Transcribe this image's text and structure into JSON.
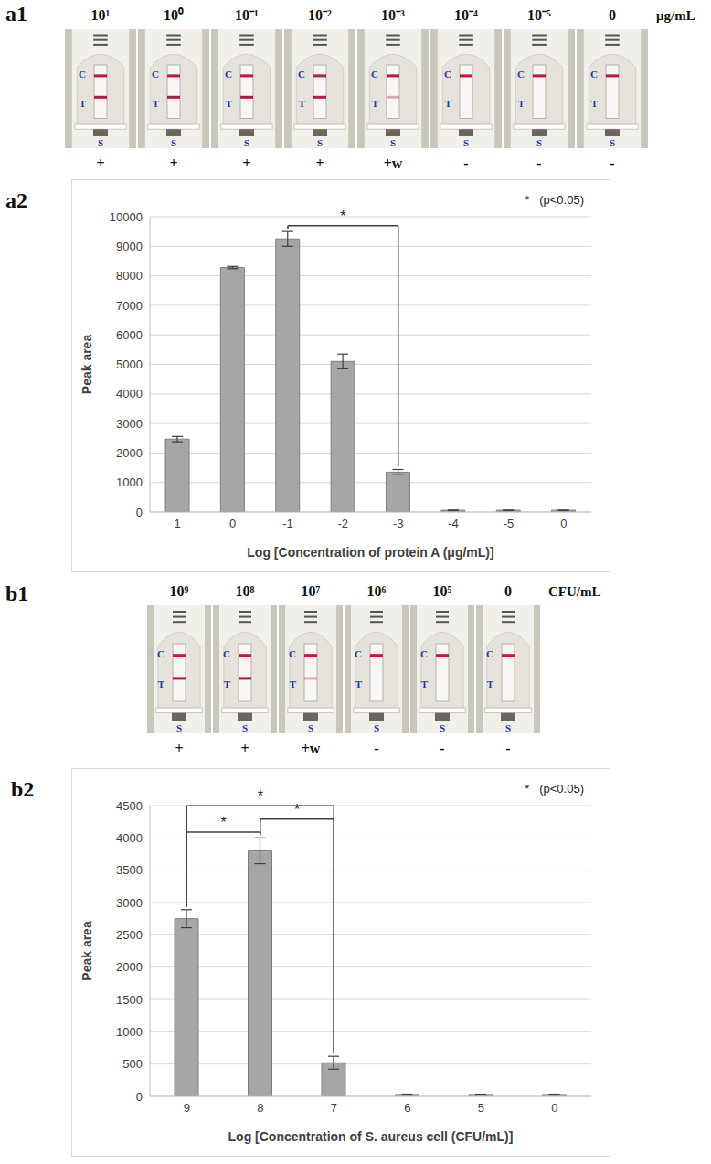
{
  "markings": {
    "control": "C",
    "test": "T",
    "sample": "S"
  },
  "strips": [
    {
      "panel": "a1",
      "unit": "μg/mL",
      "concentrations": [
        "10¹",
        "10⁰",
        "10⁻¹",
        "10⁻²",
        "10⁻³",
        "10⁻⁴",
        "10⁻⁵",
        "0"
      ],
      "results": [
        "+",
        "+",
        "+",
        "+",
        "+w",
        "-",
        "-",
        "-"
      ]
    },
    {
      "panel": "b1",
      "unit": "CFU/mL",
      "concentrations": [
        "10⁹",
        "10⁸",
        "10⁷",
        "10⁶",
        "10⁵",
        "0"
      ],
      "results": [
        "+",
        "+",
        "+w",
        "-",
        "-",
        "-"
      ]
    }
  ],
  "chart_data": [
    {
      "panel": "a2",
      "type": "bar",
      "categories": [
        "1",
        "0",
        "-1",
        "-2",
        "-3",
        "-4",
        "-5",
        "0"
      ],
      "values": [
        2470,
        8280,
        9250,
        5100,
        1350,
        60,
        60,
        60
      ],
      "errors": [
        90,
        40,
        250,
        250,
        90,
        5,
        5,
        5
      ],
      "color": "#a6a6a6",
      "ylim": [
        0,
        10000
      ],
      "yticks": [
        0,
        1000,
        2000,
        3000,
        4000,
        5000,
        6000,
        7000,
        8000,
        9000,
        10000
      ],
      "grid": true,
      "x_label": "Log [Concentration of protein A (μg/mL)]",
      "y_label": "Peak area",
      "annotation": "*   (p<0.05)",
      "significance": [
        {
          "from": 2,
          "to": 4,
          "label": "*"
        }
      ]
    },
    {
      "panel": "b2",
      "type": "bar",
      "categories": [
        "9",
        "8",
        "7",
        "6",
        "5",
        "0"
      ],
      "values": [
        2750,
        3800,
        520,
        30,
        30,
        30
      ],
      "errors": [
        140,
        200,
        100,
        5,
        5,
        5
      ],
      "color": "#a6a6a6",
      "ylim": [
        0,
        4500
      ],
      "yticks": [
        0,
        500,
        1000,
        1500,
        2000,
        2500,
        3000,
        3500,
        4000,
        4500
      ],
      "grid": true,
      "x_label": "Log [Concentration of S. aureus cell (CFU/mL)]",
      "y_label": "Peak area",
      "annotation": "*   (p<0.05)",
      "significance": [
        {
          "from": 0,
          "to": 1,
          "label": "*"
        },
        {
          "from": 1,
          "to": 2,
          "label": "*"
        },
        {
          "from": 0,
          "to": 2,
          "label": "*"
        }
      ]
    }
  ]
}
